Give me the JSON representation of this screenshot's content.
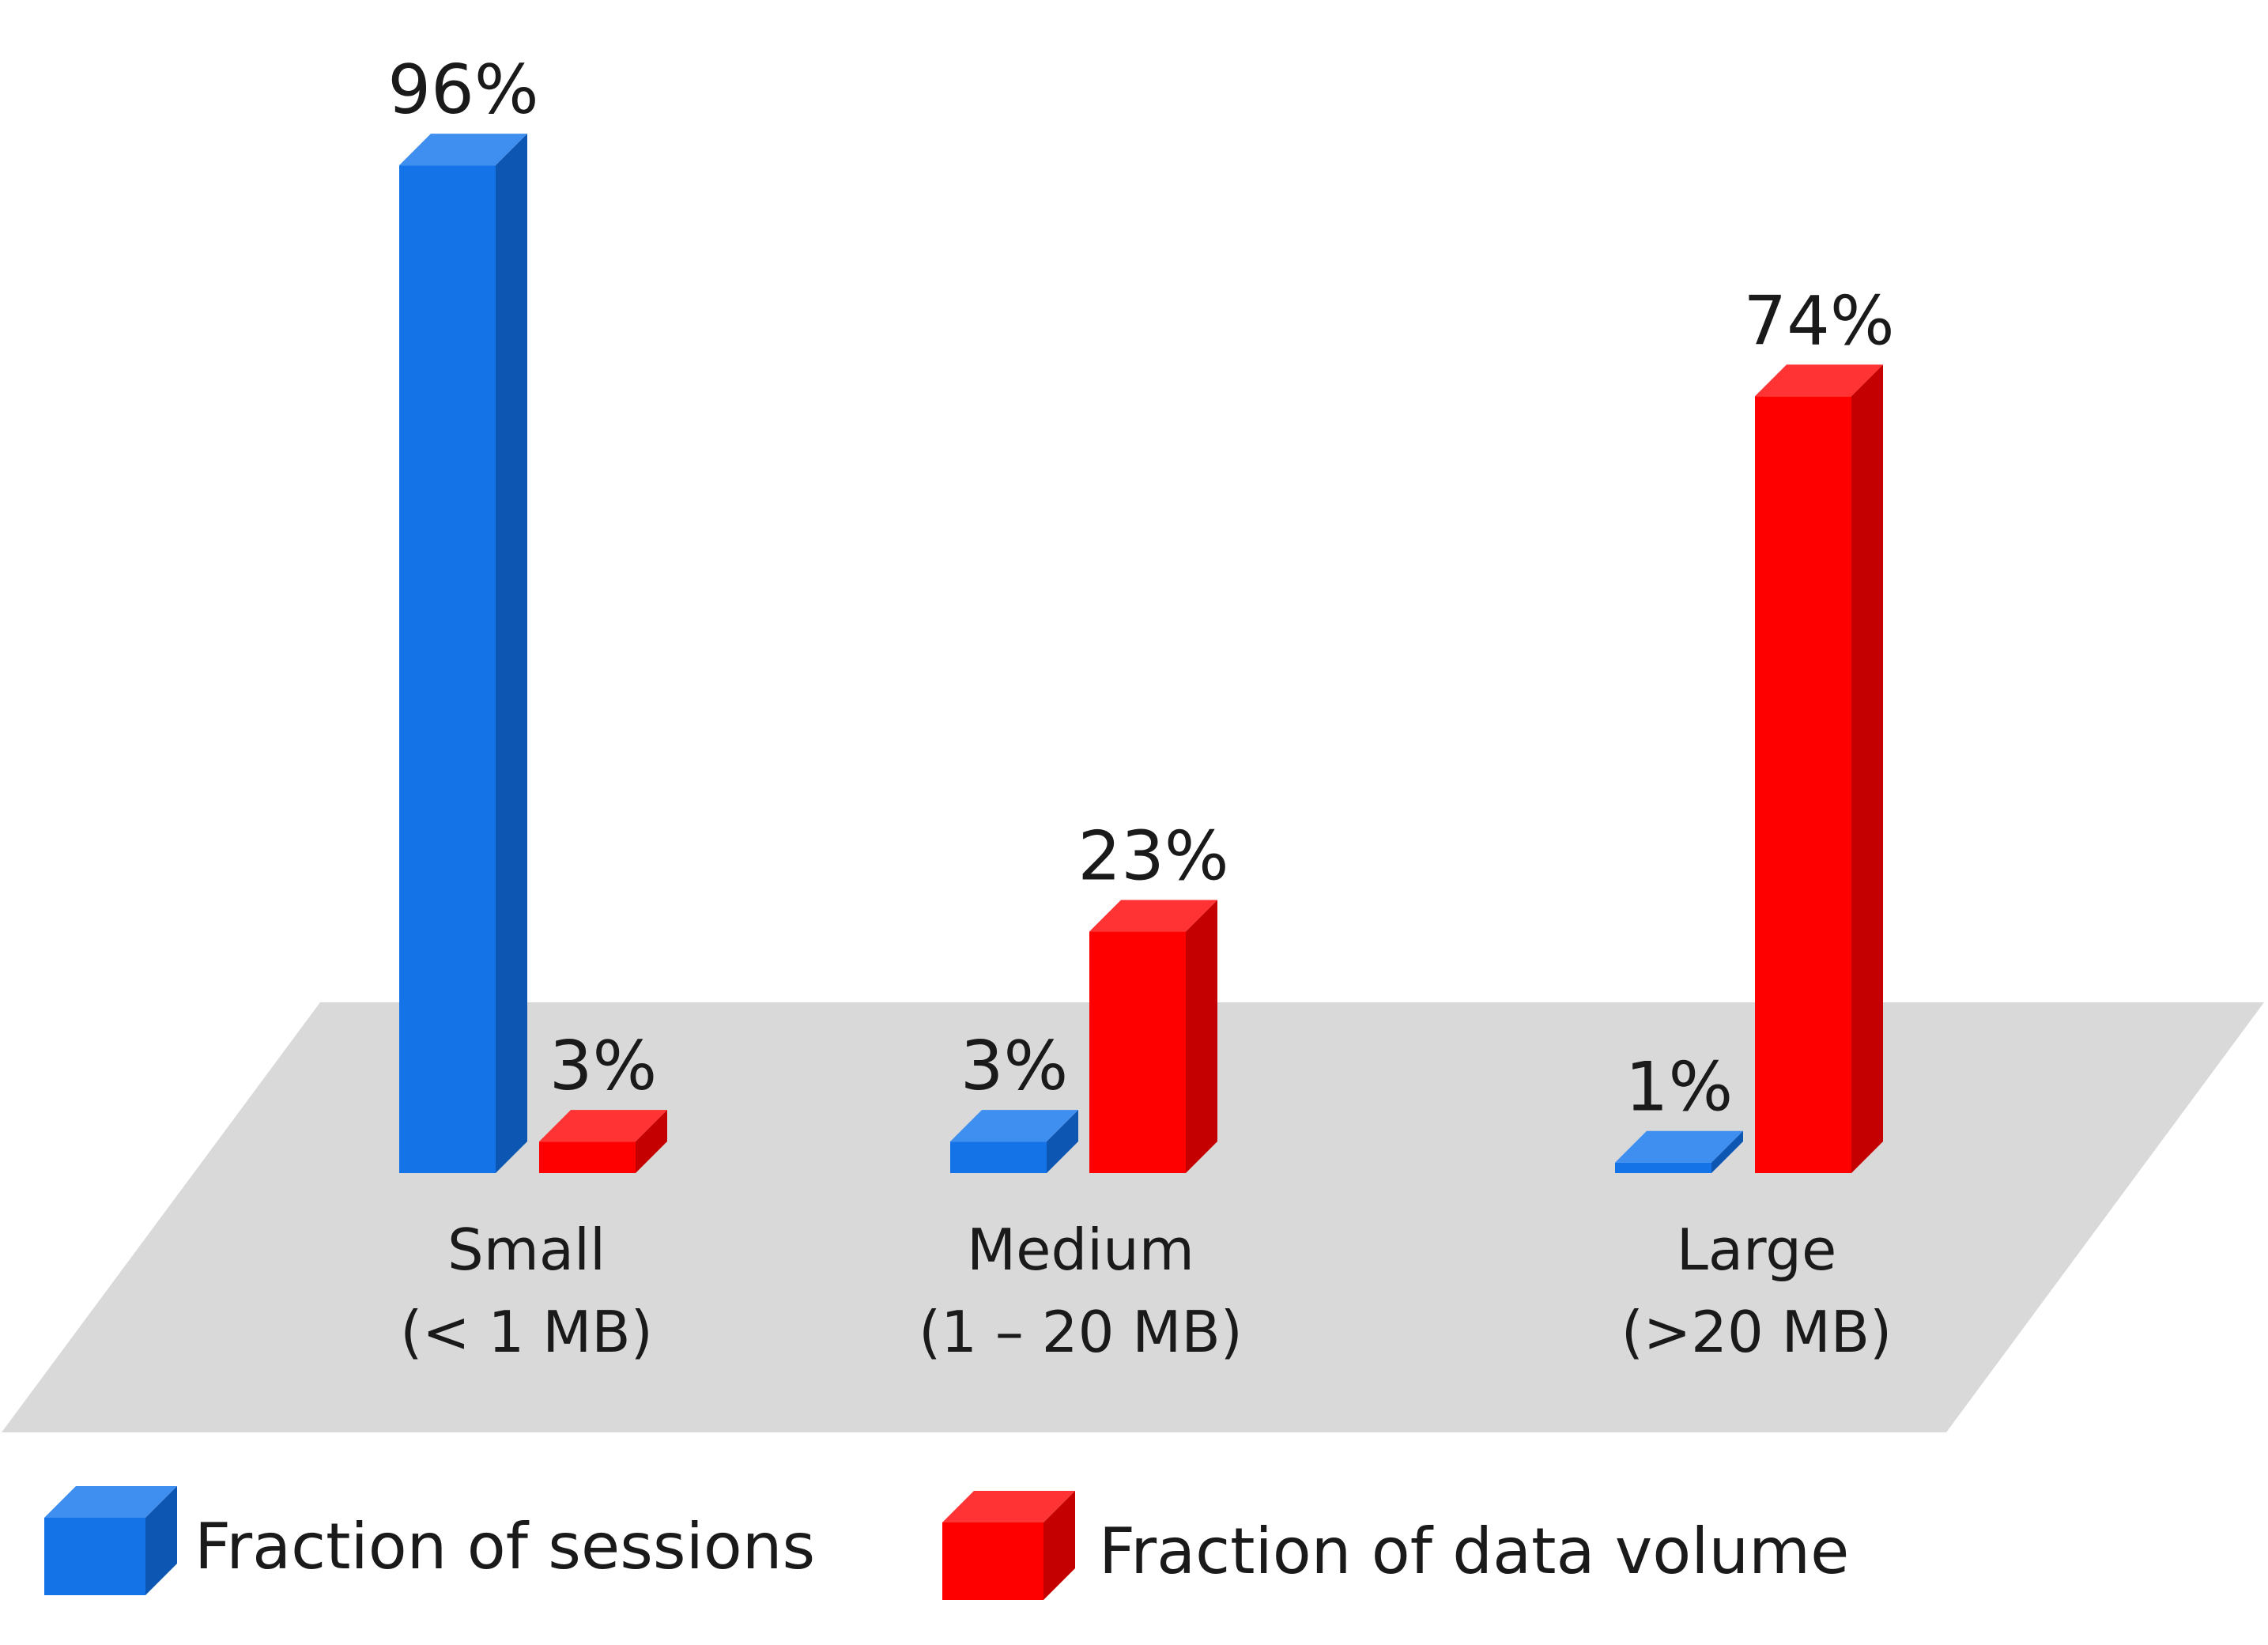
{
  "chart_data": {
    "type": "bar",
    "categories": [
      {
        "name": "Small",
        "range": "(< 1 MB)"
      },
      {
        "name": "Medium",
        "range": "(1 – 20 MB)"
      },
      {
        "name": "Large",
        "range": "(>20 MB)"
      }
    ],
    "series": [
      {
        "name": "Fraction of sessions",
        "values": [
          96,
          3,
          1
        ],
        "labels": [
          "96%",
          "3%",
          "1%"
        ],
        "colors": {
          "front": "#1473e6",
          "side": "#0d57b3",
          "top": "#3f8ff0"
        }
      },
      {
        "name": "Fraction of data volume",
        "values": [
          3,
          23,
          74
        ],
        "labels": [
          "3%",
          "23%",
          "74%"
        ],
        "colors": {
          "front": "#ff0000",
          "side": "#c40000",
          "top": "#ff3333"
        }
      }
    ],
    "unit": "%",
    "ylim": [
      0,
      100
    ],
    "style": "3d-bars-on-floor",
    "floor_color": "#d9d9d9",
    "legend_position": "bottom",
    "grid": false
  }
}
